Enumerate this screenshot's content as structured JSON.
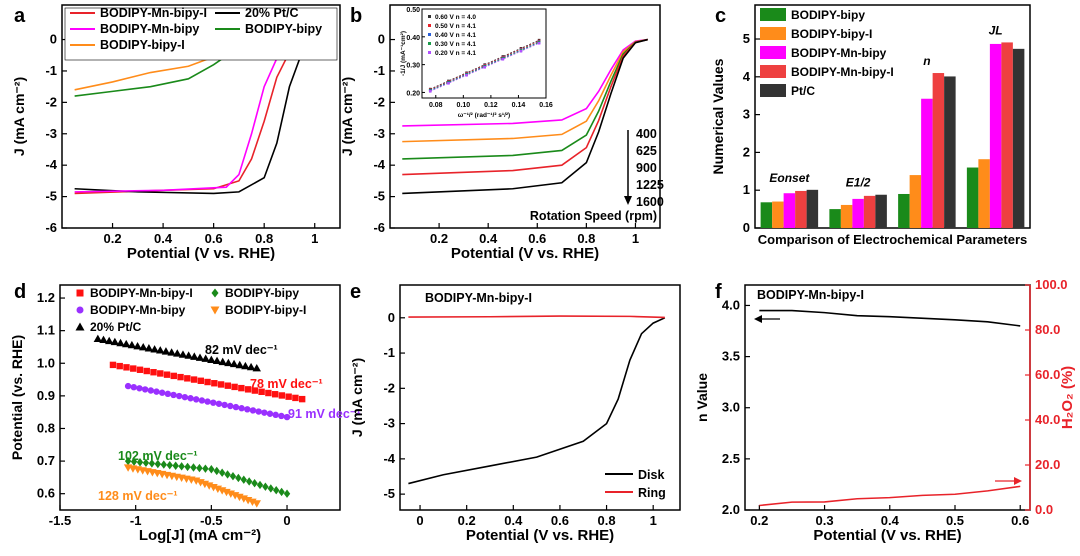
{
  "chart_data": [
    {
      "panel": "a",
      "type": "line",
      "xlabel": "Potential (V vs. RHE)",
      "ylabel": "J (mA cm⁻²)",
      "xlim": [
        0.0,
        1.1
      ],
      "ylim": [
        -6,
        1.1
      ],
      "xticks": [
        0.2,
        0.4,
        0.6,
        0.8,
        1.0
      ],
      "yticks": [
        -6,
        -5,
        -4,
        -3,
        -2,
        -1,
        0
      ],
      "series": [
        {
          "name": "BODIPY-Mn-bipy-I",
          "color": "#e8232a",
          "points": [
            [
              0.05,
              -4.9
            ],
            [
              0.4,
              -4.8
            ],
            [
              0.6,
              -4.75
            ],
            [
              0.7,
              -4.5
            ],
            [
              0.75,
              -3.8
            ],
            [
              0.8,
              -2.6
            ],
            [
              0.85,
              -1.2
            ],
            [
              0.9,
              -0.4
            ],
            [
              0.95,
              -0.1
            ],
            [
              1.05,
              0
            ]
          ]
        },
        {
          "name": "20% Pt/C",
          "color": "#000000",
          "points": [
            [
              0.05,
              -4.75
            ],
            [
              0.3,
              -4.85
            ],
            [
              0.6,
              -4.9
            ],
            [
              0.7,
              -4.85
            ],
            [
              0.8,
              -4.4
            ],
            [
              0.85,
              -3.3
            ],
            [
              0.9,
              -1.5
            ],
            [
              0.95,
              -0.4
            ],
            [
              1.0,
              -0.05
            ],
            [
              1.05,
              0
            ]
          ]
        },
        {
          "name": "BODIPY-Mn-bipy",
          "color": "#ff00ff",
          "points": [
            [
              0.05,
              -4.85
            ],
            [
              0.4,
              -4.8
            ],
            [
              0.65,
              -4.7
            ],
            [
              0.7,
              -4.3
            ],
            [
              0.75,
              -3.0
            ],
            [
              0.8,
              -1.5
            ],
            [
              0.85,
              -0.6
            ],
            [
              0.9,
              -0.2
            ],
            [
              1.0,
              -0.02
            ],
            [
              1.05,
              0
            ]
          ]
        },
        {
          "name": "BODIPY-bipy",
          "color": "#1a8a1a",
          "points": [
            [
              0.05,
              -1.8
            ],
            [
              0.2,
              -1.65
            ],
            [
              0.35,
              -1.5
            ],
            [
              0.5,
              -1.25
            ],
            [
              0.6,
              -0.8
            ],
            [
              0.7,
              -0.25
            ],
            [
              0.8,
              -0.05
            ],
            [
              1.05,
              0
            ]
          ]
        },
        {
          "name": "BODIPY-bipy-I",
          "color": "#ff8c1a",
          "points": [
            [
              0.05,
              -1.6
            ],
            [
              0.2,
              -1.35
            ],
            [
              0.35,
              -1.05
            ],
            [
              0.5,
              -0.85
            ],
            [
              0.6,
              -0.55
            ],
            [
              0.7,
              -0.2
            ],
            [
              0.8,
              -0.05
            ],
            [
              1.05,
              0
            ]
          ]
        }
      ]
    },
    {
      "panel": "b",
      "type": "line",
      "xlabel": "Potential (V vs. RHE)",
      "ylabel": "J (mA cm⁻²)",
      "xlim": [
        0.0,
        1.1
      ],
      "ylim": [
        -6,
        1.1
      ],
      "xticks": [
        0.2,
        0.4,
        0.6,
        0.8,
        1.0
      ],
      "yticks": [
        -6,
        -5,
        -4,
        -3,
        -2,
        -1,
        0
      ],
      "annotations": {
        "speeds": [
          "400",
          "625",
          "900",
          "1225",
          "1600"
        ],
        "speed_label": "Rotation Speed (rpm)"
      },
      "series": [
        {
          "name": "400",
          "color": "#ff00ff",
          "points": [
            [
              0.05,
              -2.75
            ],
            [
              0.5,
              -2.67
            ],
            [
              0.7,
              -2.56
            ],
            [
              0.8,
              -2.2
            ],
            [
              0.85,
              -1.65
            ],
            [
              0.9,
              -0.96
            ],
            [
              0.95,
              -0.33
            ],
            [
              1.0,
              -0.05
            ],
            [
              1.05,
              0
            ]
          ]
        },
        {
          "name": "625",
          "color": "#ff8c1a",
          "points": [
            [
              0.05,
              -3.25
            ],
            [
              0.5,
              -3.15
            ],
            [
              0.7,
              -3.02
            ],
            [
              0.8,
              -2.6
            ],
            [
              0.85,
              -1.95
            ],
            [
              0.9,
              -1.14
            ],
            [
              0.95,
              -0.39
            ],
            [
              1.0,
              -0.07
            ],
            [
              1.05,
              0
            ]
          ]
        },
        {
          "name": "900",
          "color": "#1a8a1a",
          "points": [
            [
              0.05,
              -3.8
            ],
            [
              0.5,
              -3.69
            ],
            [
              0.7,
              -3.53
            ],
            [
              0.8,
              -3.04
            ],
            [
              0.85,
              -2.28
            ],
            [
              0.9,
              -1.33
            ],
            [
              0.95,
              -0.46
            ],
            [
              1.0,
              -0.08
            ],
            [
              1.05,
              0
            ]
          ]
        },
        {
          "name": "1225",
          "color": "#e8232a",
          "points": [
            [
              0.05,
              -4.3
            ],
            [
              0.5,
              -4.17
            ],
            [
              0.7,
              -4.0
            ],
            [
              0.8,
              -3.44
            ],
            [
              0.85,
              -2.58
            ],
            [
              0.9,
              -1.5
            ],
            [
              0.95,
              -0.52
            ],
            [
              1.0,
              -0.09
            ],
            [
              1.05,
              0
            ]
          ]
        },
        {
          "name": "1600",
          "color": "#000000",
          "points": [
            [
              0.05,
              -4.9
            ],
            [
              0.5,
              -4.75
            ],
            [
              0.7,
              -4.56
            ],
            [
              0.8,
              -3.92
            ],
            [
              0.85,
              -2.94
            ],
            [
              0.9,
              -1.72
            ],
            [
              0.95,
              -0.59
            ],
            [
              1.0,
              -0.1
            ],
            [
              1.05,
              0
            ]
          ]
        }
      ],
      "inset": {
        "type": "scatter",
        "xlabel": "ω⁻¹/² (rad⁻¹/² s¹/²)",
        "ylabel": "-1/J (mA⁻¹cm²)",
        "xlim": [
          0.07,
          0.16
        ],
        "ylim": [
          0.18,
          0.5
        ],
        "xticks": [
          0.08,
          0.1,
          0.12,
          0.14,
          0.16
        ],
        "yticks": [
          0.2,
          0.3,
          0.4,
          0.5
        ],
        "series": [
          {
            "name": "0.60 V n = 4.0",
            "color": "#333333",
            "points": [
              [
                0.076,
                0.212
              ],
              [
                0.155,
                0.388
              ]
            ]
          },
          {
            "name": "0.50 V n = 4.1",
            "color": "#e8232a",
            "points": [
              [
                0.076,
                0.21
              ],
              [
                0.155,
                0.385
              ]
            ]
          },
          {
            "name": "0.40 V n = 4.1",
            "color": "#2a5fd8",
            "points": [
              [
                0.076,
                0.208
              ],
              [
                0.155,
                0.382
              ]
            ]
          },
          {
            "name": "0.30 V n = 4.1",
            "color": "#1a9a4a",
            "points": [
              [
                0.076,
                0.206
              ],
              [
                0.155,
                0.38
              ]
            ]
          },
          {
            "name": "0.20 V n = 4.1",
            "color": "#b050ff",
            "points": [
              [
                0.076,
                0.204
              ],
              [
                0.155,
                0.377
              ]
            ]
          }
        ]
      }
    },
    {
      "panel": "c",
      "type": "bar",
      "xlabel": "Comparison of Electrochemical Parameters",
      "ylabel": "Numerical Values",
      "ylim": [
        0,
        5.9
      ],
      "yticks": [
        0,
        1,
        2,
        3,
        4,
        5
      ],
      "categories": [
        "Eonset",
        "E1/2",
        "n",
        "JL"
      ],
      "series": [
        {
          "name": "BODIPY-bipy",
          "color": "#1a8a1a",
          "values": [
            0.68,
            0.5,
            0.9,
            1.6
          ]
        },
        {
          "name": "BODIPY-bipy-I",
          "color": "#ff8c1a",
          "values": [
            0.7,
            0.61,
            1.4,
            1.82
          ]
        },
        {
          "name": "BODIPY-Mn-bipy",
          "color": "#ff00ff",
          "values": [
            0.92,
            0.77,
            3.42,
            4.87
          ]
        },
        {
          "name": "BODIPY-Mn-bipy-I",
          "color": "#ee4040",
          "values": [
            0.98,
            0.85,
            4.1,
            4.91
          ]
        },
        {
          "name": "Pt/C",
          "color": "#333333",
          "values": [
            1.01,
            0.88,
            4.01,
            4.74
          ]
        }
      ]
    },
    {
      "panel": "d",
      "type": "scatter",
      "xlabel": "Log[J] (mA cm⁻²)",
      "ylabel": "Potential (vs. RHE)",
      "xlim": [
        -1.5,
        0.35
      ],
      "ylim": [
        0.55,
        1.24
      ],
      "xticks": [
        -1.5,
        -1.0,
        -0.5,
        0.0
      ],
      "yticks": [
        0.6,
        0.7,
        0.8,
        0.9,
        1.0,
        1.1,
        1.2
      ],
      "series": [
        {
          "name": "BODIPY-Mn-bipy-I",
          "color": "#ff1010",
          "marker": "square",
          "slope": "78 mV dec⁻¹",
          "points": [
            [
              -1.15,
              0.995
            ],
            [
              0.1,
              0.89
            ]
          ]
        },
        {
          "name": "BODIPY-bipy",
          "color": "#1a8a1a",
          "marker": "diamond",
          "slope": "102 mV dec⁻¹",
          "points": [
            [
              -1.05,
              0.7
            ],
            [
              -0.5,
              0.675
            ],
            [
              0.0,
              0.6
            ]
          ]
        },
        {
          "name": "BODIPY-Mn-bipy",
          "color": "#9a30ff",
          "marker": "circle",
          "slope": "91 mV dec⁻¹",
          "points": [
            [
              -1.05,
              0.93
            ],
            [
              0.0,
              0.835
            ]
          ]
        },
        {
          "name": "BODIPY-bipy-I",
          "color": "#ff8c1a",
          "marker": "tri-down",
          "slope": "128 mV dec⁻¹",
          "points": [
            [
              -1.05,
              0.68
            ],
            [
              -0.6,
              0.64
            ],
            [
              -0.2,
              0.57
            ]
          ]
        },
        {
          "name": "20% Pt/C",
          "color": "#000000",
          "marker": "tri-up",
          "slope": "82 mV dec⁻¹",
          "points": [
            [
              -1.25,
              1.075
            ],
            [
              -0.2,
              0.985
            ]
          ]
        }
      ]
    },
    {
      "panel": "e",
      "type": "line",
      "title": "BODIPY-Mn-bipy-I",
      "xlabel": "Potential (V vs. RHE)",
      "ylabel": "J (mA cm⁻²)",
      "xlim": [
        -0.086,
        1.115
      ],
      "ylim": [
        -5.45,
        0.93
      ],
      "xticks": [
        0.0,
        0.2,
        0.4,
        0.6,
        0.8,
        1.0
      ],
      "yticks": [
        -5,
        -4,
        -3,
        -2,
        -1,
        0
      ],
      "series": [
        {
          "name": "Disk",
          "color": "#000000",
          "points": [
            [
              -0.05,
              -4.7
            ],
            [
              0.1,
              -4.45
            ],
            [
              0.3,
              -4.2
            ],
            [
              0.5,
              -3.95
            ],
            [
              0.7,
              -3.5
            ],
            [
              0.8,
              -3.0
            ],
            [
              0.85,
              -2.3
            ],
            [
              0.9,
              -1.2
            ],
            [
              0.95,
              -0.45
            ],
            [
              1.0,
              -0.15
            ],
            [
              1.05,
              0
            ]
          ]
        },
        {
          "name": "Ring",
          "color": "#e8232a",
          "points": [
            [
              -0.05,
              0.02
            ],
            [
              0.3,
              0.03
            ],
            [
              0.6,
              0.05
            ],
            [
              0.9,
              0.04
            ],
            [
              1.05,
              0.01
            ]
          ]
        }
      ]
    },
    {
      "panel": "f",
      "type": "line",
      "title": "BODIPY-Mn-bipy-I",
      "xlabel": "Potential (V vs. RHE)",
      "ylabel": "n Value",
      "ylabel_right": "H₂O₂ (%)",
      "xlim": [
        0.178,
        0.615
      ],
      "ylim": [
        2.0,
        4.2
      ],
      "ylim_right": [
        0,
        100
      ],
      "xticks": [
        0.2,
        0.3,
        0.4,
        0.5,
        0.6
      ],
      "yticks": [
        2.0,
        2.5,
        3.0,
        3.5,
        4.0
      ],
      "yticks_right": [
        0,
        20,
        40,
        60,
        80,
        100
      ],
      "series": [
        {
          "name": "n Value",
          "color": "#000000",
          "axis": "left",
          "points": [
            [
              0.2,
              3.95
            ],
            [
              0.25,
              3.95
            ],
            [
              0.3,
              3.93
            ],
            [
              0.35,
              3.9
            ],
            [
              0.4,
              3.89
            ],
            [
              0.5,
              3.86
            ],
            [
              0.55,
              3.84
            ],
            [
              0.6,
              3.8
            ]
          ]
        },
        {
          "name": "H2O2 (%)",
          "color": "#e8232a",
          "axis": "right",
          "points": [
            [
              0.2,
              2
            ],
            [
              0.25,
              3.5
            ],
            [
              0.3,
              3.6
            ],
            [
              0.35,
              5
            ],
            [
              0.4,
              5.5
            ],
            [
              0.45,
              6.5
            ],
            [
              0.5,
              7
            ],
            [
              0.55,
              8.5
            ],
            [
              0.6,
              10.5
            ]
          ]
        }
      ]
    }
  ],
  "panel_letters": [
    "a",
    "b",
    "c",
    "d",
    "e",
    "f"
  ]
}
